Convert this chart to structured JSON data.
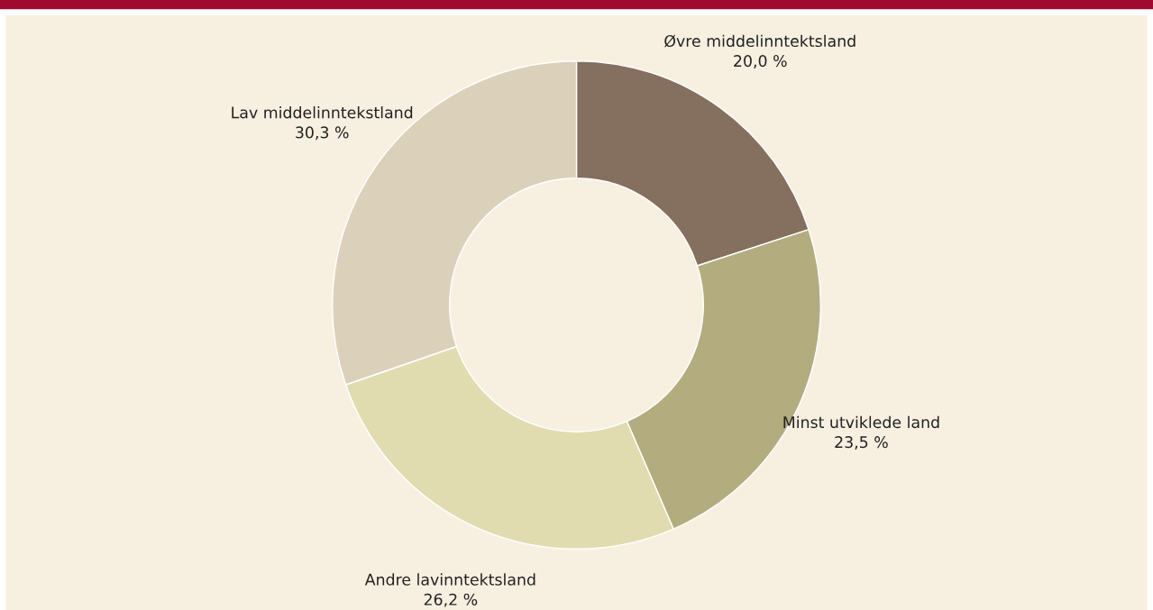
{
  "chart_data": {
    "type": "donut",
    "categories": [
      "Øvre middelinntektsland",
      "Minst utviklede land",
      "Andre lavinntektsland",
      "Lav middelinntekstland"
    ],
    "values": [
      20.0,
      23.5,
      26.2,
      30.3
    ],
    "value_labels": [
      "20,0 %",
      "23,5 %",
      "26,2 %",
      "30,3 %"
    ],
    "colors": [
      "#857060",
      "#b3ac7f",
      "#e0dcb0",
      "#dbd1bb"
    ],
    "legend": false
  }
}
